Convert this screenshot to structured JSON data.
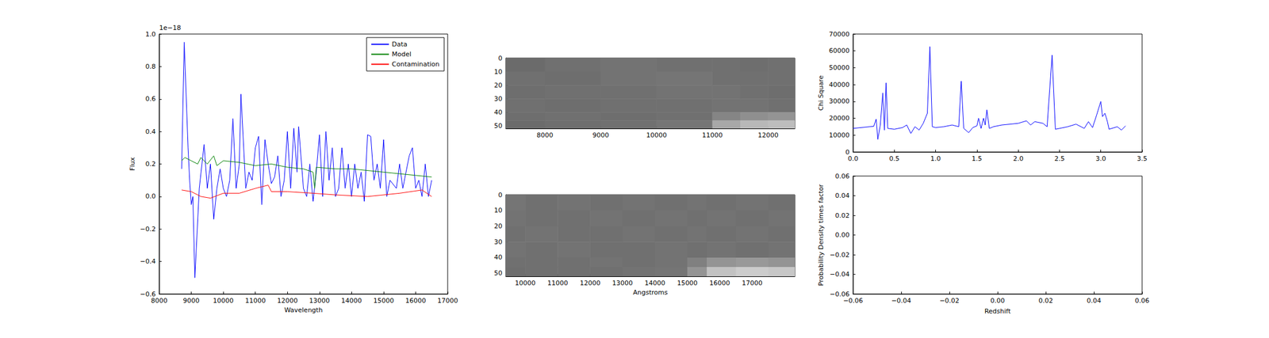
{
  "chart_data": [
    {
      "type": "line",
      "annotation": "1e−18",
      "xlabel": "Wavelength",
      "ylabel": "Flux",
      "xlim": [
        8000,
        17000
      ],
      "xticks": [
        8000,
        9000,
        10000,
        11000,
        12000,
        13000,
        14000,
        15000,
        16000,
        17000
      ],
      "ylim": [
        -0.6,
        1.0
      ],
      "yticks": [
        {
          "value": -0.6,
          "label": "−0.6"
        },
        {
          "value": -0.4,
          "label": "−0.4"
        },
        {
          "value": -0.2,
          "label": "−0.2"
        },
        {
          "value": 0,
          "label": "0.0"
        },
        0.2,
        0.4,
        0.6,
        0.8,
        {
          "value": 1.0,
          "label": "1.0"
        }
      ],
      "legend": "upper right",
      "series": [
        {
          "name": "Data",
          "color": "#0000ff",
          "x": [
            8700,
            8780,
            8900,
            8950,
            9000,
            9050,
            9112,
            9250,
            9400,
            9500,
            9600,
            9700,
            9800,
            9900,
            10000,
            10100,
            10200,
            10300,
            10400,
            10500,
            10550,
            10700,
            10800,
            10900,
            11000,
            11100,
            11200,
            11300,
            11400,
            11500,
            11600,
            11700,
            11800,
            11900,
            12000,
            12100,
            12200,
            12300,
            12350,
            12500,
            12600,
            12700,
            12800,
            12900,
            13000,
            13100,
            13200,
            13300,
            13400,
            13500,
            13600,
            13700,
            13800,
            13900,
            14000,
            14100,
            14200,
            14300,
            14400,
            14500,
            14600,
            14700,
            14800,
            14900,
            15000,
            15100,
            15200,
            15400,
            15500,
            15600,
            15800,
            15900,
            16000,
            16100,
            16200,
            16300,
            16400,
            16500
          ],
          "values": [
            0.17,
            0.95,
            0.3,
            0.1,
            -0.05,
            0.0,
            -0.5,
            0.05,
            0.32,
            0.05,
            0.2,
            -0.14,
            0.05,
            0.17,
            0.05,
            0.0,
            0.1,
            0.48,
            0.05,
            0.2,
            0.63,
            0.05,
            0.15,
            0.1,
            0.3,
            0.37,
            -0.05,
            0.35,
            0.2,
            0.08,
            0.12,
            0.25,
            0.0,
            0.1,
            0.4,
            0.05,
            0.42,
            0.15,
            0.43,
            0.05,
            0.0,
            0.2,
            -0.03,
            0.15,
            0.38,
            0.0,
            0.4,
            0.1,
            0.3,
            0.0,
            0.05,
            0.3,
            0.05,
            0.2,
            0.0,
            0.2,
            0.05,
            0.15,
            -0.03,
            0.38,
            0.37,
            0.1,
            0.2,
            0.05,
            0.35,
            0.0,
            0.1,
            0.05,
            0.2,
            0.05,
            0.25,
            0.3,
            0.05,
            0.1,
            0.0,
            0.2,
            0.0,
            0.1
          ]
        },
        {
          "name": "Model",
          "color": "#008000",
          "x": [
            8700,
            8800,
            9000,
            9200,
            9300,
            9500,
            9700,
            9800,
            10000,
            10500,
            11000,
            11500,
            12000,
            12500,
            12800,
            12850,
            12900,
            13500,
            14000,
            15000,
            16000,
            16500
          ],
          "values": [
            0.22,
            0.24,
            0.22,
            0.2,
            0.24,
            0.2,
            0.25,
            0.19,
            0.22,
            0.21,
            0.19,
            0.2,
            0.18,
            0.17,
            0.15,
            0.05,
            0.18,
            0.17,
            0.17,
            0.15,
            0.13,
            0.12
          ]
        },
        {
          "name": "Contamination",
          "color": "#ff0000",
          "x": [
            8700,
            9000,
            9300,
            9600,
            10000,
            10500,
            11000,
            11400,
            11500,
            12000,
            12800,
            13500,
            14500,
            15500,
            16200,
            16500
          ],
          "values": [
            0.04,
            0.03,
            0.0,
            -0.01,
            0.02,
            0.02,
            0.05,
            0.07,
            0.03,
            0.03,
            0.02,
            0.01,
            0.0,
            0.02,
            0.04,
            0.0
          ]
        }
      ]
    },
    {
      "type": "image",
      "xlim": [
        7300,
        12480
      ],
      "xticks": [
        8000,
        9000,
        10000,
        11000,
        12000
      ],
      "ylim": [
        0,
        52
      ],
      "yticks": [
        0,
        10,
        20,
        30,
        40,
        50
      ],
      "cells": {
        "x_edges": [
          7300,
          8000,
          9000,
          10000,
          11000,
          11500,
          12000,
          12480
        ],
        "y_edges": [
          0,
          10,
          20,
          30,
          40,
          46,
          52
        ],
        "values": [
          [
            0.42,
            0.44,
            0.45,
            0.44,
            0.44,
            0.43,
            0.44
          ],
          [
            0.44,
            0.43,
            0.45,
            0.46,
            0.44,
            0.44,
            0.44
          ],
          [
            0.43,
            0.44,
            0.44,
            0.45,
            0.45,
            0.44,
            0.43
          ],
          [
            0.44,
            0.43,
            0.44,
            0.44,
            0.45,
            0.45,
            0.44
          ],
          [
            0.43,
            0.44,
            0.43,
            0.44,
            0.52,
            0.56,
            0.58
          ],
          [
            0.42,
            0.43,
            0.44,
            0.46,
            0.66,
            0.72,
            0.74
          ]
        ]
      }
    },
    {
      "type": "image",
      "xlabel": "Angstroms",
      "xlim": [
        9400,
        18320
      ],
      "xticks": [
        10000,
        11000,
        12000,
        13000,
        14000,
        15000,
        16000,
        17000
      ],
      "ylim": [
        0,
        52
      ],
      "yticks": [
        0,
        10,
        20,
        30,
        40,
        50
      ],
      "cells": {
        "x_edges": [
          9400,
          10000,
          11000,
          12000,
          13000,
          14000,
          15000,
          15600,
          16500,
          17500,
          18320
        ],
        "y_edges": [
          0,
          10,
          20,
          30,
          40,
          46,
          52
        ],
        "values": [
          [
            0.46,
            0.44,
            0.45,
            0.44,
            0.45,
            0.44,
            0.45,
            0.44,
            0.45,
            0.44
          ],
          [
            0.45,
            0.44,
            0.44,
            0.45,
            0.44,
            0.45,
            0.44,
            0.45,
            0.44,
            0.45
          ],
          [
            0.44,
            0.45,
            0.44,
            0.44,
            0.45,
            0.44,
            0.45,
            0.44,
            0.45,
            0.44
          ],
          [
            0.45,
            0.44,
            0.45,
            0.44,
            0.44,
            0.45,
            0.44,
            0.45,
            0.44,
            0.45
          ],
          [
            0.44,
            0.44,
            0.44,
            0.45,
            0.44,
            0.45,
            0.5,
            0.58,
            0.6,
            0.58
          ],
          [
            0.43,
            0.44,
            0.44,
            0.44,
            0.45,
            0.46,
            0.58,
            0.76,
            0.8,
            0.78
          ]
        ]
      }
    },
    {
      "type": "line",
      "ylabel": "Chi Square",
      "xlim": [
        0,
        3.5
      ],
      "xticks": [
        {
          "value": 0,
          "label": "0.0"
        },
        0.5,
        {
          "value": 1,
          "label": "1.0"
        },
        1.5,
        {
          "value": 2,
          "label": "2.0"
        },
        2.5,
        {
          "value": 3,
          "label": "3.0"
        },
        3.5
      ],
      "ylim": [
        0,
        70000
      ],
      "yticks": [
        0,
        10000,
        20000,
        30000,
        40000,
        50000,
        60000,
        70000
      ],
      "series": [
        {
          "color": "#0000ff",
          "x": [
            0.0,
            0.1,
            0.2,
            0.25,
            0.28,
            0.3,
            0.33,
            0.36,
            0.38,
            0.4,
            0.42,
            0.5,
            0.6,
            0.65,
            0.7,
            0.75,
            0.8,
            0.85,
            0.9,
            0.93,
            0.96,
            1.0,
            1.1,
            1.2,
            1.28,
            1.31,
            1.34,
            1.4,
            1.45,
            1.5,
            1.52,
            1.55,
            1.58,
            1.6,
            1.62,
            1.65,
            1.7,
            1.8,
            1.9,
            2.0,
            2.1,
            2.15,
            2.2,
            2.3,
            2.35,
            2.41,
            2.45,
            2.5,
            2.6,
            2.7,
            2.8,
            2.85,
            2.9,
            2.95,
            3.0,
            3.02,
            3.05,
            3.08,
            3.1,
            3.2,
            3.25,
            3.3
          ],
          "values": [
            14000,
            14500,
            15000,
            15200,
            19500,
            7500,
            16000,
            35000,
            13000,
            41000,
            14000,
            13500,
            14500,
            16000,
            11000,
            15000,
            13000,
            17000,
            23000,
            62500,
            15000,
            14500,
            15000,
            16000,
            15000,
            42000,
            14000,
            11500,
            14500,
            15500,
            20000,
            14000,
            20000,
            16000,
            25000,
            14000,
            15000,
            16000,
            16500,
            17000,
            18500,
            16000,
            18000,
            17000,
            15000,
            57500,
            13500,
            14000,
            15000,
            16500,
            14000,
            18000,
            14500,
            22000,
            30000,
            21000,
            23000,
            18000,
            13500,
            15000,
            13000,
            15500
          ]
        }
      ]
    },
    {
      "type": "line",
      "xlabel": "Redshift",
      "ylabel": "Probability Density times factor",
      "xlim": [
        -0.06,
        0.06
      ],
      "xticks": [
        {
          "value": -0.06,
          "label": "−0.06"
        },
        {
          "value": -0.04,
          "label": "−0.04"
        },
        {
          "value": -0.02,
          "label": "−0.02"
        },
        {
          "value": 0,
          "label": "0.00"
        },
        0.02,
        0.04,
        0.06
      ],
      "ylim": [
        -0.06,
        0.06
      ],
      "yticks": [
        {
          "value": -0.06,
          "label": "−0.06"
        },
        {
          "value": -0.04,
          "label": "−0.04"
        },
        {
          "value": -0.02,
          "label": "−0.02"
        },
        {
          "value": 0,
          "label": "0.00"
        },
        0.02,
        0.04,
        0.06
      ],
      "series": []
    }
  ]
}
